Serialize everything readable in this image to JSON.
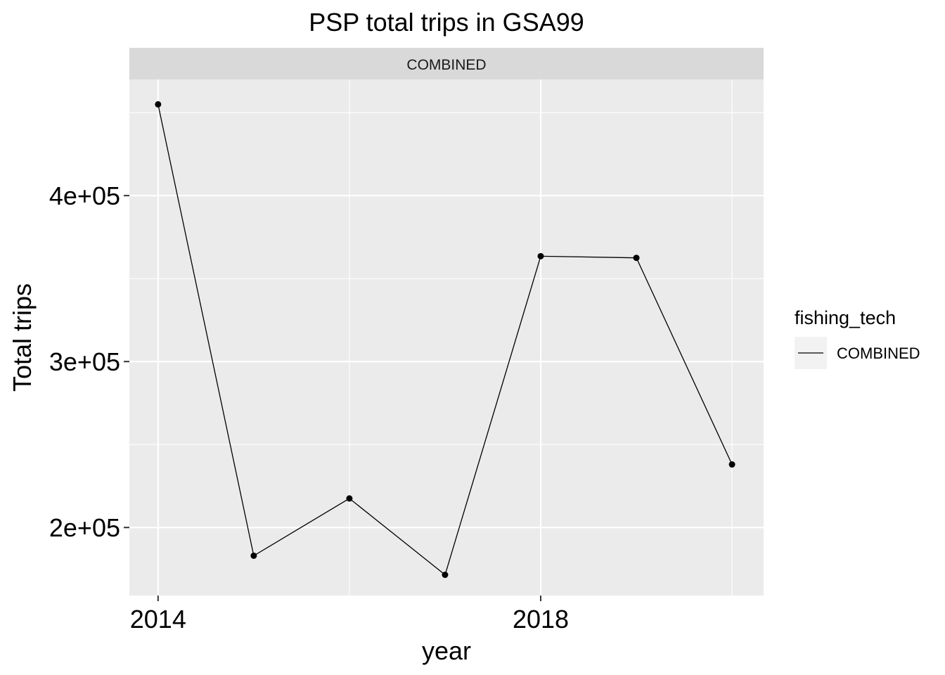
{
  "chart_data": {
    "type": "line",
    "title": "PSP total trips in GSA99",
    "facet_label": "COMBINED",
    "xlabel": "year",
    "ylabel": "Total trips",
    "x_ticks": [
      2014,
      2018
    ],
    "x_tick_labels": [
      "2014",
      "2018"
    ],
    "y_ticks": [
      200000,
      300000,
      400000
    ],
    "y_tick_labels": [
      "2e+05",
      "3e+05",
      "4e+05"
    ],
    "xlim": [
      2013.7,
      2020.33
    ],
    "ylim": [
      159000,
      470000
    ],
    "grid": true,
    "legend": {
      "title": "fishing_tech",
      "position": "right",
      "entries": [
        "COMBINED"
      ]
    },
    "series": [
      {
        "name": "COMBINED",
        "color": "#000000",
        "x": [
          2014,
          2015,
          2016,
          2017,
          2018,
          2019,
          2020
        ],
        "y": [
          455000,
          183000,
          217500,
          171500,
          363500,
          362500,
          238000
        ]
      }
    ],
    "colors": {
      "panel_background": "#ebebeb",
      "strip_background": "#d9d9d9",
      "gridline": "#ffffff",
      "tick": "#333333"
    }
  }
}
